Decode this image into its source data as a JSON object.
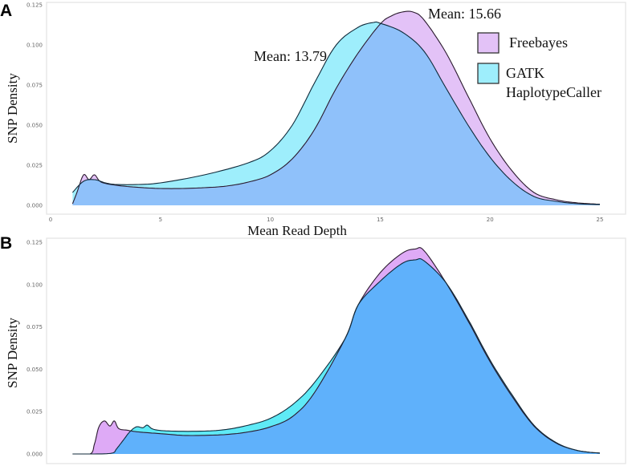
{
  "chart_data": [
    {
      "panel": "A",
      "type": "area",
      "xlabel": "Mean Read Depth",
      "ylabel": "SNP Density",
      "xlim": [
        0,
        25
      ],
      "ylim": [
        0,
        0.125
      ],
      "xticks": [
        "0",
        "5",
        "10",
        "15",
        "20",
        "25"
      ],
      "yticks": [
        "0.000",
        "0.025",
        "0.050",
        "0.075",
        "0.100",
        "0.125"
      ],
      "grid": false,
      "legend_position": "top-right",
      "annotations": [
        "Mean: 13.79",
        "Mean: 15.66"
      ],
      "series": [
        {
          "name": "Freebayes",
          "color": "#e3c2f7",
          "x": [
            1,
            1.2,
            1.5,
            1.75,
            2.0,
            2.3,
            3,
            4,
            5,
            6,
            7,
            8,
            9,
            10,
            11,
            12,
            13,
            14,
            15,
            15.5,
            16,
            16.5,
            17,
            18,
            19,
            20,
            21,
            22,
            23,
            24,
            25
          ],
          "y": [
            0.001,
            0.008,
            0.019,
            0.016,
            0.019,
            0.0145,
            0.0125,
            0.0112,
            0.0105,
            0.0105,
            0.011,
            0.012,
            0.0145,
            0.019,
            0.029,
            0.047,
            0.073,
            0.095,
            0.113,
            0.118,
            0.1205,
            0.1205,
            0.1155,
            0.095,
            0.068,
            0.0415,
            0.0215,
            0.008,
            0.0035,
            0.0015,
            0.0007
          ]
        },
        {
          "name": "GATK HaplotypeCaller",
          "color": "#9eeefc",
          "x": [
            1,
            1.5,
            2,
            2.5,
            3,
            4,
            5,
            7,
            9,
            10,
            11,
            12,
            13,
            14,
            14.7,
            15,
            16,
            17,
            18,
            19,
            20,
            21,
            22,
            23,
            24,
            25
          ],
          "y": [
            0.008,
            0.015,
            0.016,
            0.014,
            0.013,
            0.013,
            0.014,
            0.019,
            0.0265,
            0.034,
            0.05,
            0.076,
            0.1,
            0.111,
            0.114,
            0.1135,
            0.108,
            0.096,
            0.073,
            0.05,
            0.03,
            0.015,
            0.0055,
            0.0025,
            0.001,
            0.0005
          ]
        }
      ],
      "overlap_color": "#8fc1fa"
    },
    {
      "panel": "B",
      "type": "area",
      "ylabel": "SNP Density",
      "ylim": [
        0,
        0.125
      ],
      "yticks": [
        "0.000",
        "0.025",
        "0.050",
        "0.075",
        "0.100",
        "0.125"
      ],
      "grid": false,
      "series": [
        {
          "name": "Freebayes",
          "color": "#deaaf6",
          "x": [
            1,
            1.8,
            2.0,
            2.2,
            2.45,
            2.7,
            2.9,
            3.1,
            3.5,
            4,
            5,
            6,
            7,
            8,
            9,
            10,
            11,
            12,
            13.4,
            14,
            15,
            16,
            16.6,
            17,
            18,
            19,
            20,
            21,
            22,
            23,
            24,
            25
          ],
          "y": [
            0,
            0,
            0.006,
            0.016,
            0.0195,
            0.0165,
            0.0195,
            0.015,
            0.014,
            0.013,
            0.012,
            0.011,
            0.011,
            0.0115,
            0.013,
            0.016,
            0.022,
            0.036,
            0.068,
            0.088,
            0.107,
            0.1185,
            0.121,
            0.12,
            0.101,
            0.0785,
            0.0545,
            0.034,
            0.0165,
            0.0065,
            0.002,
            0.0005
          ]
        },
        {
          "name": "GATK HaplotypeCaller",
          "color": "#5feaf6",
          "x": [
            1,
            2,
            2.8,
            3.0,
            3.3,
            3.6,
            3.9,
            4.2,
            4.4,
            4.7,
            5.5,
            7,
            8,
            9,
            10,
            11,
            12,
            13.4,
            14,
            15,
            16,
            16.6,
            17,
            18,
            19,
            20,
            21,
            22,
            23,
            24,
            25
          ],
          "y": [
            0,
            0,
            0.0005,
            0.003,
            0.008,
            0.013,
            0.016,
            0.0155,
            0.017,
            0.0145,
            0.0135,
            0.0135,
            0.0145,
            0.017,
            0.021,
            0.029,
            0.042,
            0.068,
            0.088,
            0.102,
            0.1125,
            0.1146,
            0.114,
            0.101,
            0.0795,
            0.0555,
            0.035,
            0.017,
            0.0068,
            0.002,
            0.0005
          ]
        }
      ],
      "overlap_color": "#5fb1fb"
    }
  ],
  "panel_labels": [
    "A",
    "B"
  ],
  "legend": {
    "freebayes": "Freebayes",
    "gatk_line1": "GATK",
    "gatk_line2": "HaplotypeCaller"
  },
  "axis": {
    "xlabel": "Mean Read Depth",
    "ylabel": "SNP Density"
  },
  "annotations": {
    "mean_gatk": "Mean: 13.79",
    "mean_freebayes": "Mean: 15.66"
  }
}
